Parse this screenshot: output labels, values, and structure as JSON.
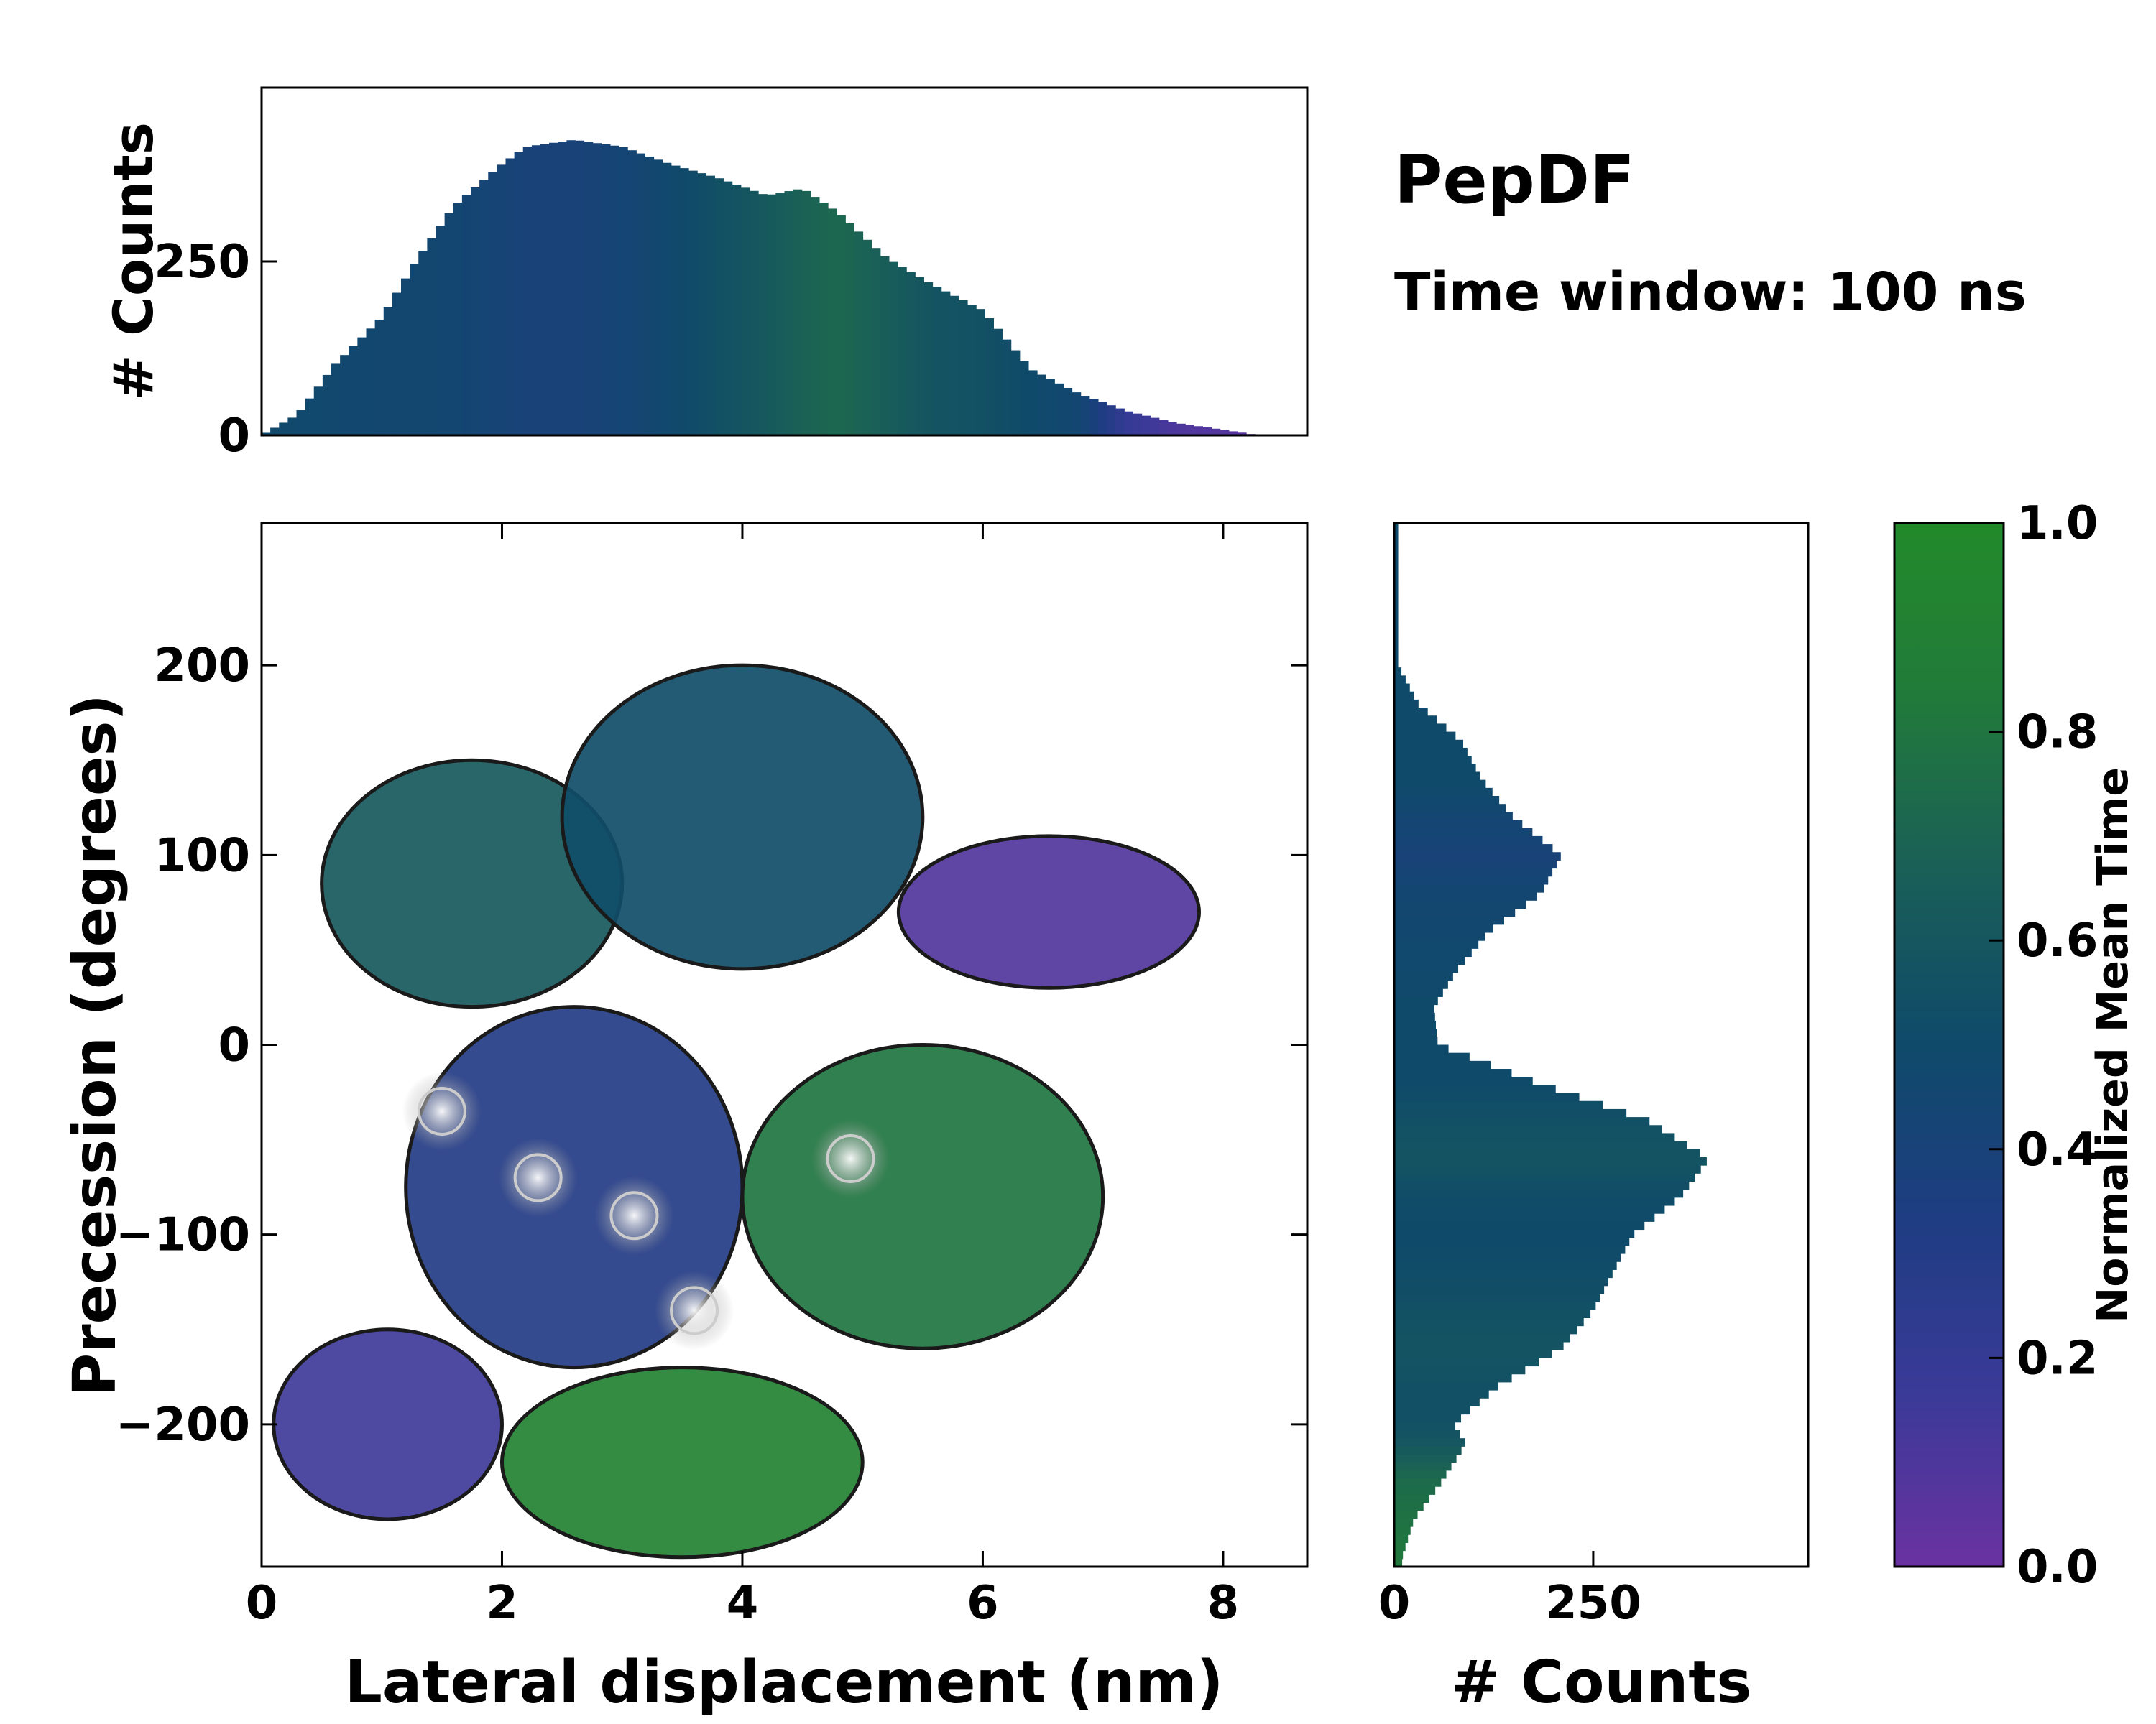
{
  "figure": {
    "title": "PepDF",
    "subtitle": "Time window: 100 ns"
  },
  "chart_data": [
    {
      "name": "joint-heatmap",
      "type": "heatmap",
      "xlabel": "Lateral displacement (nm)",
      "ylabel": "Precession (degrees)",
      "xlim": [
        0,
        8.7
      ],
      "ylim": [
        -275,
        275
      ],
      "xticks": [
        0,
        2,
        4,
        6,
        8
      ],
      "yticks": [
        -200,
        -100,
        0,
        100,
        200
      ],
      "ytick_labels": [
        "−200",
        "−100",
        "0",
        "100",
        "200"
      ],
      "xtick_labels": [
        "0",
        "2",
        "4",
        "6",
        "8"
      ],
      "regions": [
        {
          "label": "upper-left cluster",
          "x": [
            0.5,
            3.0
          ],
          "y": [
            20,
            150
          ],
          "mean_time": 0.62
        },
        {
          "label": "upper-center cluster",
          "x": [
            2.5,
            5.5
          ],
          "y": [
            40,
            200
          ],
          "mean_time": 0.52
        },
        {
          "label": "upper-right lobe",
          "x": [
            5.3,
            7.8
          ],
          "y": [
            30,
            110
          ],
          "mean_time": 0.08
        },
        {
          "label": "central core",
          "x": [
            1.2,
            4.0
          ],
          "y": [
            -170,
            20
          ],
          "mean_time": 0.3
        },
        {
          "label": "right-central",
          "x": [
            4.0,
            7.0
          ],
          "y": [
            -160,
            0
          ],
          "mean_time": 0.8
        },
        {
          "label": "lower-left",
          "x": [
            0.1,
            2.0
          ],
          "y": [
            -250,
            -150
          ],
          "mean_time": 0.15
        },
        {
          "label": "lower-center",
          "x": [
            2.0,
            5.0
          ],
          "y": [
            -270,
            -170
          ],
          "mean_time": 0.92
        }
      ],
      "hotspots": [
        {
          "x": 1.5,
          "y": -35
        },
        {
          "x": 3.1,
          "y": -90
        },
        {
          "x": 4.9,
          "y": -60
        },
        {
          "x": 2.3,
          "y": -70
        },
        {
          "x": 3.6,
          "y": -140
        }
      ]
    },
    {
      "name": "x-marginal",
      "type": "bar",
      "ylabel": "# Counts",
      "ylim": [
        0,
        500
      ],
      "yticks": [
        0,
        250
      ],
      "ytick_labels": [
        "0",
        "250"
      ],
      "x_range": [
        0,
        8.7
      ],
      "profile_x": [
        0.0,
        0.3,
        0.6,
        1.0,
        1.3,
        1.6,
        2.0,
        2.2,
        2.6,
        3.0,
        3.4,
        3.8,
        4.2,
        4.5,
        4.8,
        5.2,
        5.6,
        6.0,
        6.4,
        6.8,
        7.2,
        7.6,
        8.0,
        8.3
      ],
      "profile_counts": [
        0,
        30,
        100,
        170,
        255,
        330,
        390,
        415,
        425,
        415,
        390,
        370,
        345,
        355,
        320,
        255,
        215,
        180,
        95,
        60,
        35,
        18,
        8,
        0
      ],
      "mean_time": [
        0.5,
        0.48,
        0.47,
        0.46,
        0.46,
        0.45,
        0.42,
        0.4,
        0.4,
        0.43,
        0.48,
        0.55,
        0.62,
        0.68,
        0.72,
        0.65,
        0.58,
        0.55,
        0.5,
        0.45,
        0.2,
        0.1,
        0.08,
        0.05
      ]
    },
    {
      "name": "y-marginal",
      "type": "bar",
      "xlabel": "# Counts",
      "xlim": [
        0,
        520
      ],
      "xticks": [
        0,
        250
      ],
      "xtick_labels": [
        "0",
        "250"
      ],
      "y_range": [
        -275,
        275
      ],
      "profile_y": [
        -270,
        -250,
        -230,
        -210,
        -200,
        -180,
        -160,
        -140,
        -120,
        -100,
        -80,
        -60,
        -40,
        -20,
        0,
        20,
        40,
        60,
        80,
        100,
        120,
        140,
        160,
        180,
        200
      ],
      "profile_counts": [
        10,
        25,
        60,
        90,
        75,
        130,
        210,
        250,
        275,
        300,
        360,
        395,
        320,
        180,
        55,
        50,
        80,
        120,
        185,
        210,
        150,
        110,
        85,
        30,
        5
      ],
      "mean_time": [
        0.82,
        0.78,
        0.74,
        0.6,
        0.55,
        0.55,
        0.58,
        0.55,
        0.52,
        0.5,
        0.52,
        0.58,
        0.55,
        0.5,
        0.5,
        0.5,
        0.48,
        0.47,
        0.45,
        0.4,
        0.45,
        0.5,
        0.5,
        0.5,
        0.5
      ]
    },
    {
      "name": "colorbar",
      "type": "colorbar",
      "label": "Normalized Mean Time",
      "range": [
        0.0,
        1.0
      ],
      "ticks": [
        "0.0",
        "0.2",
        "0.4",
        "0.6",
        "0.8",
        "1.0"
      ],
      "colormap": [
        "#6a32a0",
        "#3a3a98",
        "#1e3d82",
        "#0f4a6a",
        "#1a5f58",
        "#217a3a",
        "#228a2a"
      ]
    }
  ]
}
